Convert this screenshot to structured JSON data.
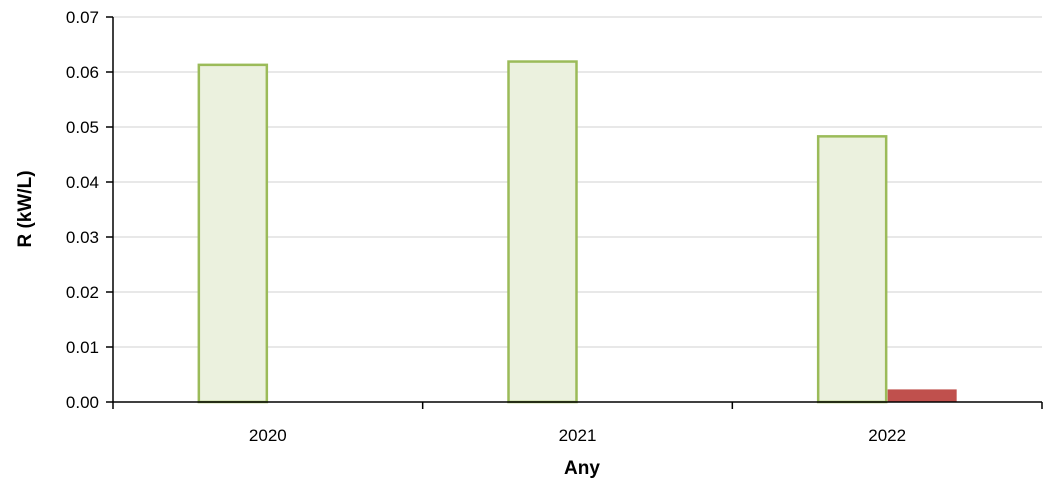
{
  "chart_data": {
    "type": "bar",
    "title": "",
    "xlabel": "Any",
    "ylabel": "R (kW/L)",
    "categories": [
      "2020",
      "2021",
      "2022"
    ],
    "series": [
      {
        "values": [
          0.0613,
          0.0619,
          0.0483
        ],
        "fill": "#ebf1de",
        "stroke": "#9bbb59"
      },
      {
        "values": [
          0,
          0,
          0.0022
        ],
        "fill": "#c0504d",
        "stroke": "#c0504d"
      }
    ],
    "ylim": [
      0,
      0.07
    ],
    "yticks": [
      "0.00",
      "0.01",
      "0.02",
      "0.03",
      "0.04",
      "0.05",
      "0.06",
      "0.07"
    ],
    "grid": true,
    "legend": "none"
  }
}
